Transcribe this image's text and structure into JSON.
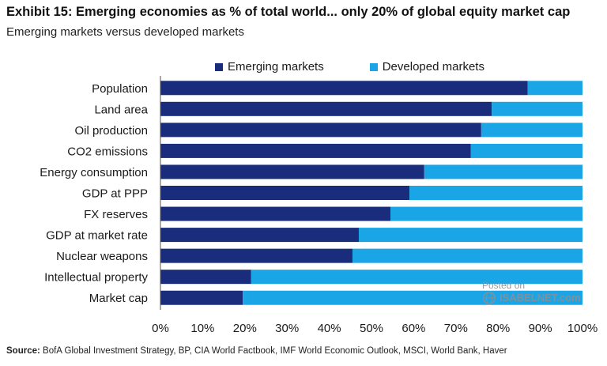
{
  "header": {
    "title": "Exhibit 15: Emerging economies as % of total world... only 20% of global equity market cap",
    "subtitle": "Emerging markets versus developed markets"
  },
  "watermark": {
    "line1": "Posted on",
    "line2": "ISABELNET.com"
  },
  "footer": {
    "source_label": "Source:",
    "source_text": " BofA Global Investment Strategy, BP, CIA World Factbook, IMF World Economic Outlook, MSCI, World Bank, Haver"
  },
  "colors": {
    "emerging": "#1a2d7c",
    "developed": "#1aa6e6",
    "axis": "#555555"
  },
  "chart_data": {
    "type": "bar",
    "orientation": "horizontal",
    "stacked": true,
    "categories": [
      "Population",
      "Land area",
      "Oil production",
      "CO2 emissions",
      "Energy consumption",
      "GDP at PPP",
      "FX reserves",
      "GDP at market rate",
      "Nuclear weapons",
      "Intellectual property",
      "Market cap"
    ],
    "series": [
      {
        "name": "Emerging markets",
        "values": [
          87,
          78.5,
          76,
          73.5,
          62.5,
          59,
          54.5,
          47,
          45.5,
          21.5,
          19.5
        ]
      },
      {
        "name": "Developed markets",
        "values": [
          13,
          21.5,
          24,
          26.5,
          37.5,
          41,
          45.5,
          53,
          54.5,
          78.5,
          80.5
        ]
      }
    ],
    "x_ticks": [
      "0%",
      "10%",
      "20%",
      "30%",
      "40%",
      "50%",
      "60%",
      "70%",
      "80%",
      "90%",
      "100%"
    ],
    "xlim": [
      0,
      100
    ],
    "grid": false,
    "legend_position": "top"
  }
}
